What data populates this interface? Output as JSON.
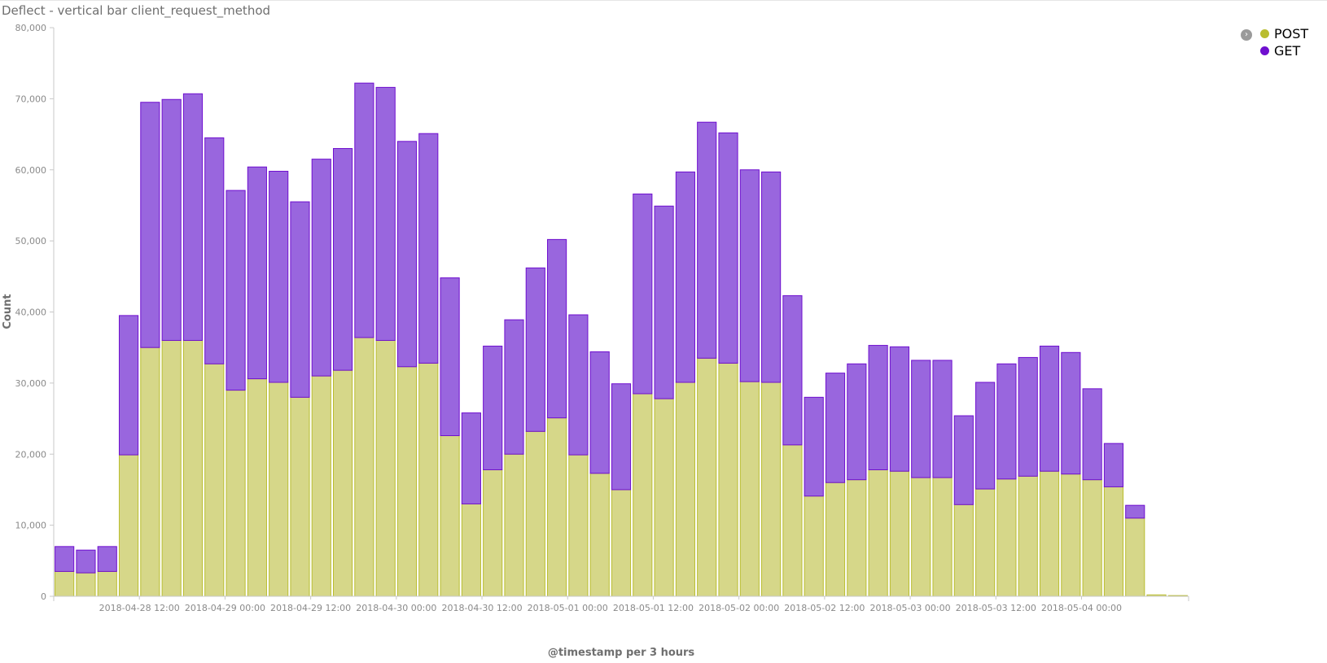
{
  "title": "Deflect - vertical bar client_request_method",
  "legend": {
    "toggle_icon": "chevron-right-circle-icon",
    "items": [
      {
        "label": "POST",
        "color": "#b9bd2f"
      },
      {
        "label": "GET",
        "color": "#6f0fcf"
      }
    ]
  },
  "chart_data": {
    "type": "bar",
    "stacked": true,
    "xlabel": "@timestamp per 3 hours",
    "ylabel": "Count",
    "ylim": [
      0,
      80000
    ],
    "yticks": [
      0,
      10000,
      20000,
      30000,
      40000,
      50000,
      60000,
      70000,
      80000
    ],
    "ytick_labels": [
      "0",
      "10,000",
      "20,000",
      "30,000",
      "40,000",
      "50,000",
      "60,000",
      "70,000",
      "80,000"
    ],
    "xtick_labels": [
      {
        "label": "2018-04-28 12:00",
        "after_bar": 4
      },
      {
        "label": "2018-04-29 00:00",
        "after_bar": 8
      },
      {
        "label": "2018-04-29 12:00",
        "after_bar": 12
      },
      {
        "label": "2018-04-30 00:00",
        "after_bar": 16
      },
      {
        "label": "2018-04-30 12:00",
        "after_bar": 20
      },
      {
        "label": "2018-05-01 00:00",
        "after_bar": 24
      },
      {
        "label": "2018-05-01 12:00",
        "after_bar": 28
      },
      {
        "label": "2018-05-02 00:00",
        "after_bar": 32
      },
      {
        "label": "2018-05-02 12:00",
        "after_bar": 36
      },
      {
        "label": "2018-05-03 00:00",
        "after_bar": 40
      },
      {
        "label": "2018-05-03 12:00",
        "after_bar": 44
      },
      {
        "label": "2018-05-04 00:00",
        "after_bar": 48
      }
    ],
    "series": [
      {
        "name": "POST",
        "color": "#d6d789",
        "stroke": "#b9bd2f",
        "values": [
          3500,
          3300,
          3500,
          19900,
          35000,
          36000,
          36000,
          32700,
          29000,
          30600,
          30100,
          28000,
          31000,
          31800,
          36400,
          36000,
          32300,
          32800,
          22600,
          13000,
          17800,
          20000,
          23200,
          25100,
          19900,
          17300,
          15000,
          28500,
          27800,
          30100,
          33500,
          32800,
          30200,
          30100,
          21300,
          14100,
          16000,
          16400,
          17800,
          17600,
          16700,
          16700,
          12900,
          15100,
          16500,
          16900,
          17600,
          17200,
          16400,
          15400,
          11000,
          200,
          100
        ]
      },
      {
        "name": "GET",
        "color": "#9966de",
        "stroke": "#6f0fcf",
        "values": [
          3500,
          3200,
          3500,
          19600,
          34500,
          33900,
          34700,
          31800,
          28100,
          29800,
          29700,
          27500,
          30500,
          31200,
          35800,
          35600,
          31700,
          32300,
          22200,
          12800,
          17400,
          18900,
          23000,
          25100,
          19700,
          17100,
          14900,
          28100,
          27100,
          29600,
          33200,
          32400,
          29800,
          29600,
          21000,
          13900,
          15400,
          16300,
          17500,
          17500,
          16500,
          16500,
          12500,
          15000,
          16200,
          16700,
          17600,
          17100,
          12800,
          6100,
          1800,
          0,
          0
        ]
      }
    ]
  }
}
